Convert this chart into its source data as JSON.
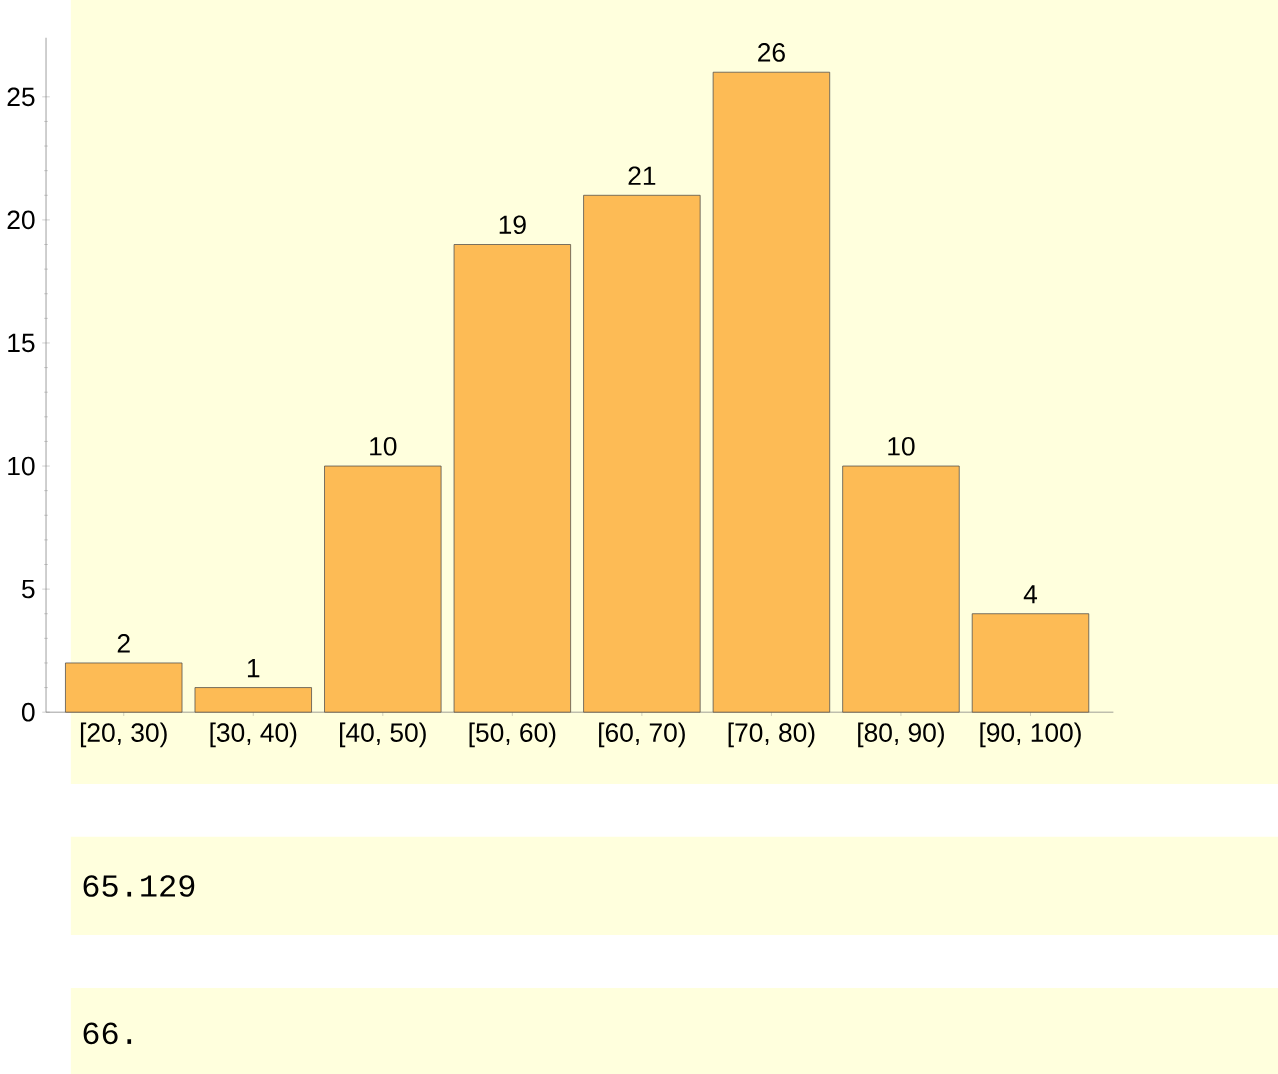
{
  "chart_data": {
    "type": "bar",
    "categories": [
      "[20, 30)",
      "[30, 40)",
      "[40, 50)",
      "[50, 60)",
      "[60, 70)",
      "[70, 80)",
      "[80, 90)",
      "[90, 100)"
    ],
    "values": [
      2,
      1,
      10,
      19,
      21,
      26,
      10,
      4
    ],
    "color": "#fdbb55",
    "ylim": [
      0,
      27.4
    ],
    "yticks": [
      0,
      5,
      10,
      15,
      20,
      25
    ],
    "data_labels": true,
    "annotations": [
      "65.129",
      "66."
    ]
  }
}
